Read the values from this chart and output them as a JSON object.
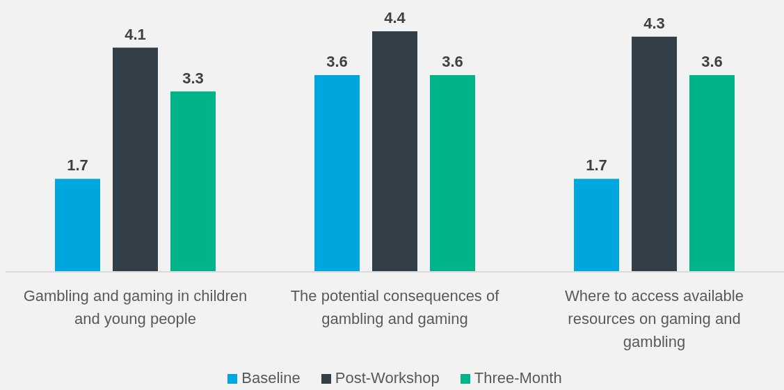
{
  "chart_data": {
    "type": "bar",
    "categories": [
      "Gambling and gaming in children and young people",
      "The potential consequences of gambling and gaming",
      "Where to access available resources on gaming and gambling"
    ],
    "series": [
      {
        "name": "Baseline",
        "color": "#00a6de",
        "values": [
          1.7,
          3.6,
          1.7
        ]
      },
      {
        "name": "Post-Workshop",
        "color": "#323e48",
        "values": [
          4.1,
          4.4,
          4.3
        ]
      },
      {
        "name": "Three-Month",
        "color": "#00b388",
        "values": [
          3.3,
          3.6,
          3.6
        ]
      }
    ],
    "data_labels": true,
    "legend": "bottom"
  }
}
